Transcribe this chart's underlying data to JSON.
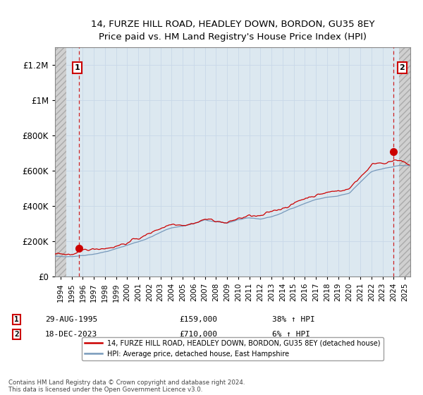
{
  "title_line1": "14, FURZE HILL ROAD, HEADLEY DOWN, BORDON, GU35 8EY",
  "title_line2": "Price paid vs. HM Land Registry's House Price Index (HPI)",
  "ylim": [
    0,
    1300000
  ],
  "yticks": [
    0,
    200000,
    400000,
    600000,
    800000,
    1000000,
    1200000
  ],
  "ytick_labels": [
    "£0",
    "£200K",
    "£400K",
    "£600K",
    "£800K",
    "£1M",
    "£1.2M"
  ],
  "property_color": "#cc0000",
  "hpi_color": "#7799bb",
  "sale1_year": 1995.66,
  "sale1_price": 159000,
  "sale2_year": 2023.96,
  "sale2_price": 710000,
  "legend_property": "14, FURZE HILL ROAD, HEADLEY DOWN, BORDON, GU35 8EY (detached house)",
  "legend_hpi": "HPI: Average price, detached house, East Hampshire",
  "copyright": "Contains HM Land Registry data © Crown copyright and database right 2024.\nThis data is licensed under the Open Government Licence v3.0.",
  "grid_color": "#c8d8e8",
  "bg_color": "#dce8f0",
  "hatch_bg": "#e8e8e8",
  "xlim_left": 1993.5,
  "xlim_right": 2025.5,
  "hatch_left_end": 1994.5,
  "hatch_right_start": 2024.5
}
